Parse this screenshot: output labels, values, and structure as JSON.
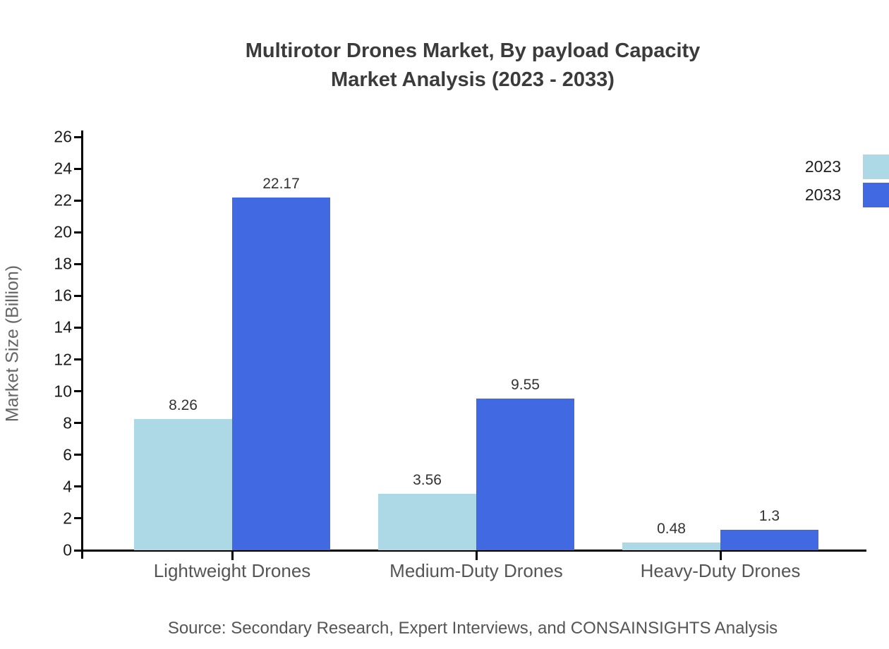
{
  "title": {
    "line1": "Multirotor Drones Market, By payload Capacity",
    "line2": "Market Analysis (2023 - 2033)"
  },
  "source": "Source: Secondary Research, Expert Interviews, and CONSAINSIGHTS Analysis",
  "colors": {
    "series_2023": "#ADD8E6",
    "series_2033": "#4169E1",
    "axis": "#000000",
    "title_text": "#3b3b3b",
    "category_text": "#555555",
    "value_text": "#333333"
  },
  "chart_data": {
    "type": "bar",
    "title": "Multirotor Drones Market, By payload Capacity Market Analysis (2023 - 2033)",
    "categories": [
      "Lightweight Drones",
      "Medium-Duty Drones",
      "Heavy-Duty Drones"
    ],
    "series": [
      {
        "name": "2023",
        "color": "#ADD8E6",
        "values": [
          8.26,
          3.56,
          0.48
        ]
      },
      {
        "name": "2033",
        "color": "#4169E1",
        "values": [
          22.17,
          9.55,
          1.3
        ]
      }
    ],
    "xlabel": "",
    "ylabel": "Market Size (Billion)",
    "ylim": [
      0,
      26
    ],
    "ytick_step": 2,
    "grid": false,
    "legend_position": "top-right",
    "value_labels": true
  }
}
